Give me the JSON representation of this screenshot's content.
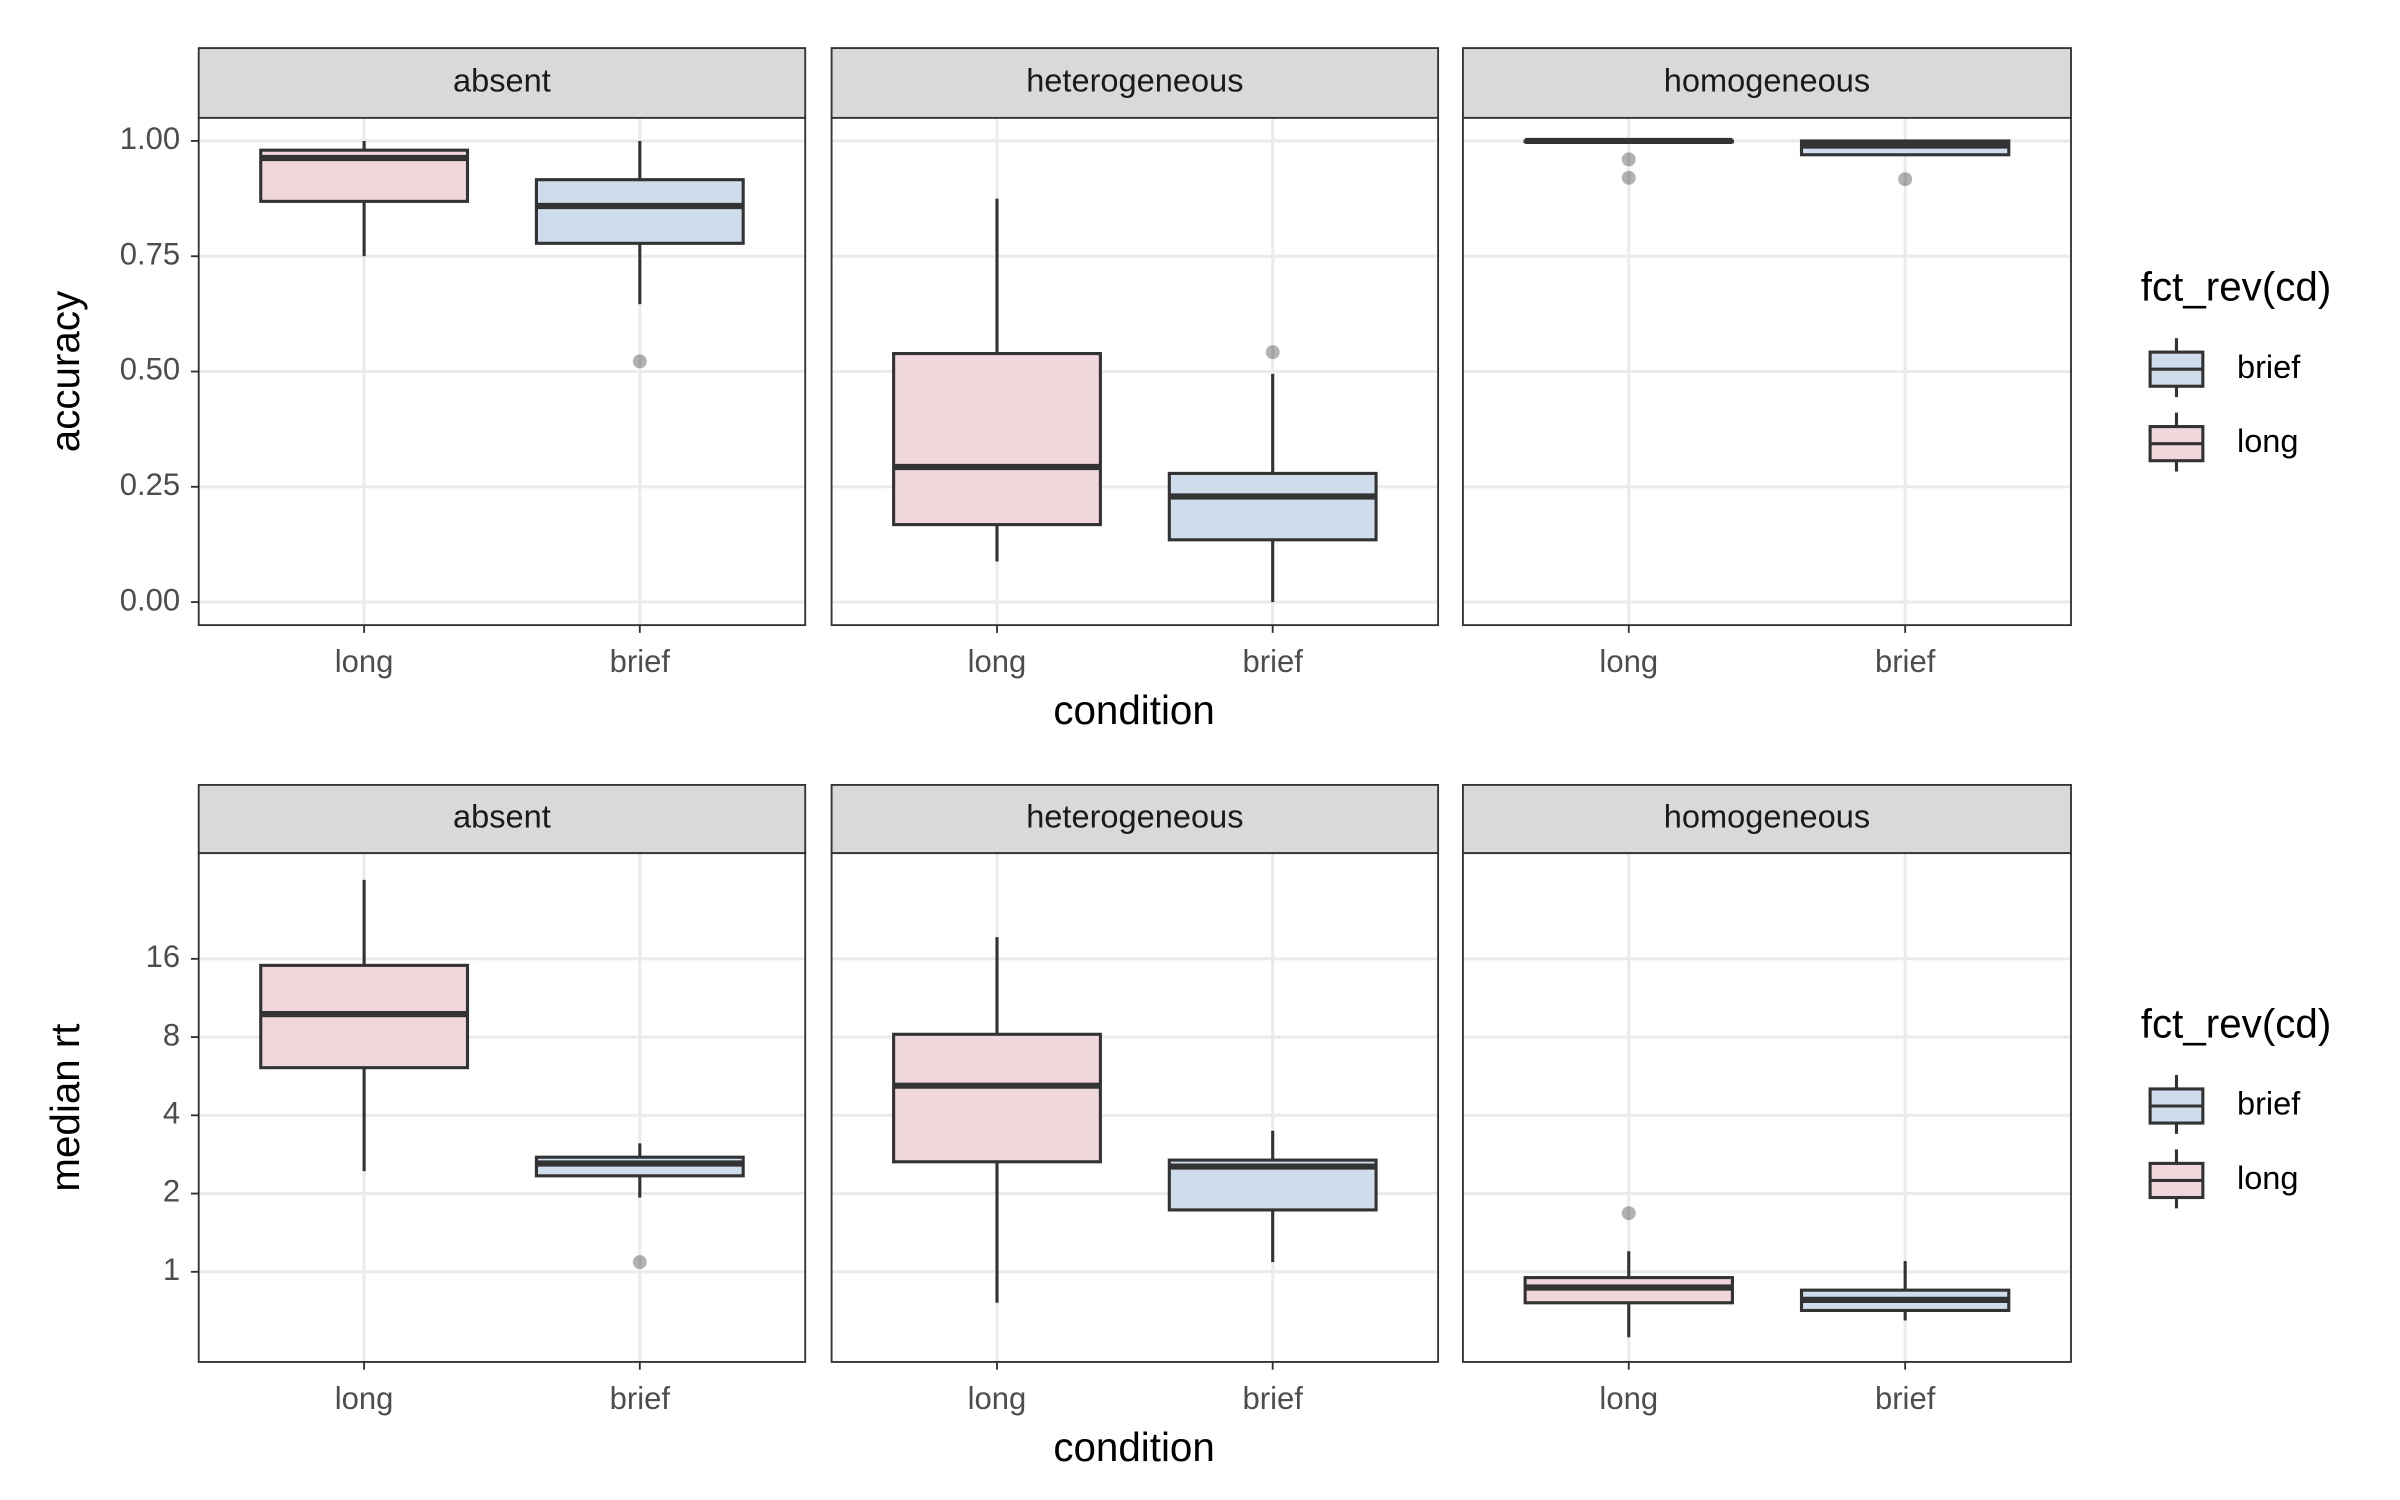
{
  "chart_data": [
    {
      "type": "box",
      "y_label": "accuracy",
      "x_label": "condition",
      "categories": [
        "long",
        "brief"
      ],
      "ylim": [
        -0.05,
        1.05
      ],
      "yticks": [
        {
          "value": 0,
          "label": "0.00"
        },
        {
          "value": 0.25,
          "label": "0.25"
        },
        {
          "value": 0.5,
          "label": "0.50"
        },
        {
          "value": 0.75,
          "label": "0.75"
        },
        {
          "value": 1,
          "label": "1.00"
        }
      ],
      "grid": true,
      "legend_title": "fct_rev(cd)",
      "series": [
        {
          "name": "brief",
          "color": "#cfdceb"
        },
        {
          "name": "long",
          "color": "#f0d7dc"
        }
      ],
      "panels": [
        {
          "title": "absent",
          "boxes": [
            {
              "min": 0.75,
              "q1": 0.869,
              "median": 0.963,
              "q3": 0.98,
              "max": 1.0,
              "outliers": []
            },
            {
              "min": 0.646,
              "q1": 0.778,
              "median": 0.859,
              "q3": 0.916,
              "max": 1.0,
              "outliers": [
                0.522
              ]
            }
          ]
        },
        {
          "title": "heterogeneous",
          "boxes": [
            {
              "min": 0.088,
              "q1": 0.168,
              "median": 0.293,
              "q3": 0.539,
              "max": 0.875,
              "outliers": []
            },
            {
              "min": 0.0,
              "q1": 0.135,
              "median": 0.229,
              "q3": 0.279,
              "max": 0.495,
              "outliers": [
                0.542
              ]
            }
          ]
        },
        {
          "title": "homogeneous",
          "boxes": [
            {
              "min": 1.0,
              "q1": 1.0,
              "median": 1.0,
              "q3": 1.0,
              "max": 1.0,
              "outliers": [
                0.96,
                0.92
              ]
            },
            {
              "min": 0.97,
              "q1": 0.97,
              "median": 0.99,
              "q3": 1.0,
              "max": 1.0,
              "outliers": [
                0.917
              ]
            }
          ]
        }
      ]
    },
    {
      "type": "box",
      "y_label": "median rt",
      "x_label": "condition",
      "categories": [
        "long",
        "brief"
      ],
      "y_scale": "log2",
      "ylim": [
        0.45,
        40.8
      ],
      "yticks": [
        1,
        2,
        4,
        8,
        16
      ],
      "grid": true,
      "legend_title": "fct_rev(cd)",
      "series": [
        {
          "name": "brief",
          "color": "#cfdceb"
        },
        {
          "name": "long",
          "color": "#f0d7dc"
        }
      ],
      "panels": [
        {
          "title": "absent",
          "boxes": [
            {
              "min": 2.44,
              "q1": 6.1,
              "median": 9.8,
              "q3": 15.1,
              "max": 32.2,
              "outliers": []
            },
            {
              "min": 1.93,
              "q1": 2.34,
              "median": 2.61,
              "q3": 2.76,
              "max": 3.12,
              "outliers": [
                1.09
              ]
            }
          ]
        },
        {
          "title": "heterogeneous",
          "boxes": [
            {
              "min": 0.76,
              "q1": 2.65,
              "median": 5.2,
              "q3": 8.2,
              "max": 19.4,
              "outliers": []
            },
            {
              "min": 1.09,
              "q1": 1.73,
              "median": 2.54,
              "q3": 2.69,
              "max": 3.49,
              "outliers": []
            }
          ]
        },
        {
          "title": "homogeneous",
          "boxes": [
            {
              "min": 0.56,
              "q1": 0.76,
              "median": 0.87,
              "q3": 0.95,
              "max": 1.2,
              "outliers": [
                1.68
              ]
            },
            {
              "min": 0.65,
              "q1": 0.71,
              "median": 0.78,
              "q3": 0.85,
              "max": 1.1,
              "outliers": []
            }
          ]
        }
      ]
    }
  ]
}
